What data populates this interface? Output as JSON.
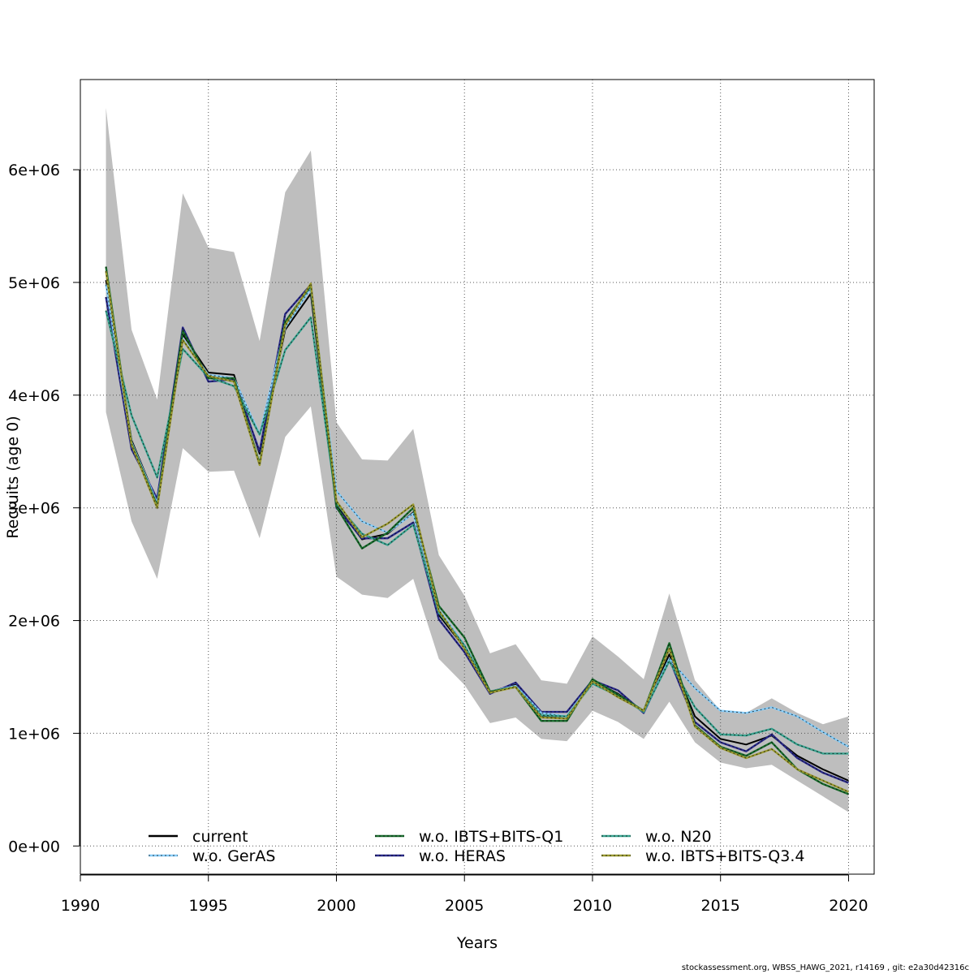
{
  "chart_data": {
    "type": "line",
    "xlabel": "Years",
    "ylabel": "Recruits (age 0)",
    "xlim": [
      1990,
      2021
    ],
    "ylim": [
      -250000,
      6800000
    ],
    "x_ticks": [
      1990,
      1995,
      2000,
      2005,
      2010,
      2015,
      2020
    ],
    "y_ticks": [
      0,
      1000000,
      2000000,
      3000000,
      4000000,
      5000000,
      6000000
    ],
    "x_tick_labels": [
      "1990",
      "1995",
      "2000",
      "2005",
      "2010",
      "2015",
      "2020"
    ],
    "y_tick_labels": [
      "0e+00",
      "1e+06",
      "2e+06",
      "3e+06",
      "4e+06",
      "5e+06",
      "6e+06"
    ],
    "grid": true,
    "legend_position": "bottom",
    "x": [
      1991,
      1992,
      1993,
      1994,
      1995,
      1996,
      1997,
      1998,
      1999,
      2000,
      2001,
      2002,
      2003,
      2004,
      2005,
      2006,
      2007,
      2008,
      2009,
      2010,
      2011,
      2012,
      2013,
      2014,
      2015,
      2016,
      2017,
      2018,
      2019,
      2020
    ],
    "band": {
      "color": "#bebebe",
      "lower": [
        3850000,
        2880000,
        2370000,
        3530000,
        3320000,
        3330000,
        2730000,
        3630000,
        3900000,
        2390000,
        2230000,
        2200000,
        2370000,
        1660000,
        1430000,
        1090000,
        1140000,
        950000,
        930000,
        1200000,
        1100000,
        950000,
        1280000,
        920000,
        740000,
        690000,
        720000,
        580000,
        440000,
        300000
      ],
      "upper": [
        6550000,
        4580000,
        3960000,
        5790000,
        5310000,
        5270000,
        4480000,
        5800000,
        6170000,
        3760000,
        3430000,
        3420000,
        3700000,
        2580000,
        2220000,
        1710000,
        1790000,
        1470000,
        1440000,
        1860000,
        1680000,
        1480000,
        2240000,
        1470000,
        1200000,
        1180000,
        1310000,
        1180000,
        1080000,
        1150000
      ]
    },
    "series": [
      {
        "name": "current",
        "color": "#000000",
        "dash": false,
        "values": [
          5020000,
          3600000,
          3050000,
          4540000,
          4200000,
          4180000,
          3480000,
          4580000,
          4900000,
          3020000,
          2720000,
          2770000,
          2960000,
          2050000,
          1760000,
          1370000,
          1430000,
          1150000,
          1130000,
          1470000,
          1350000,
          1190000,
          1700000,
          1150000,
          950000,
          900000,
          980000,
          800000,
          680000,
          580000
        ]
      },
      {
        "name": "w.o. HERAS",
        "color": "#2a2a8c",
        "dash": true,
        "values": [
          4870000,
          3520000,
          3080000,
          4600000,
          4120000,
          4140000,
          3500000,
          4720000,
          4980000,
          3000000,
          2730000,
          2730000,
          2870000,
          2010000,
          1720000,
          1350000,
          1450000,
          1190000,
          1190000,
          1470000,
          1380000,
          1180000,
          1660000,
          1100000,
          920000,
          840000,
          990000,
          780000,
          650000,
          560000
        ]
      },
      {
        "name": "w.o. GerAS",
        "color": "#87cefa",
        "dash": true,
        "values": [
          4980000,
          3580000,
          3040000,
          4500000,
          4180000,
          4150000,
          3650000,
          4600000,
          4950000,
          3150000,
          2880000,
          2780000,
          2950000,
          2100000,
          1780000,
          1370000,
          1420000,
          1180000,
          1150000,
          1460000,
          1340000,
          1190000,
          1660000,
          1400000,
          1200000,
          1180000,
          1230000,
          1150000,
          1010000,
          880000
        ]
      },
      {
        "name": "w.o. N20",
        "color": "#38a38f",
        "dash": true,
        "values": [
          4750000,
          3820000,
          3270000,
          4410000,
          4160000,
          4080000,
          3650000,
          4400000,
          4690000,
          3040000,
          2770000,
          2670000,
          2850000,
          2070000,
          1780000,
          1370000,
          1410000,
          1160000,
          1150000,
          1440000,
          1330000,
          1190000,
          1640000,
          1230000,
          990000,
          980000,
          1040000,
          900000,
          820000,
          820000
        ]
      },
      {
        "name": "w.o. IBTS+BITS-Q1",
        "color": "#1a6e2e",
        "dash": true,
        "values": [
          5140000,
          3570000,
          3020000,
          4570000,
          4150000,
          4150000,
          3390000,
          4650000,
          4970000,
          3010000,
          2640000,
          2780000,
          3000000,
          2130000,
          1850000,
          1370000,
          1410000,
          1110000,
          1110000,
          1480000,
          1340000,
          1200000,
          1800000,
          1070000,
          880000,
          800000,
          920000,
          680000,
          550000,
          460000
        ]
      },
      {
        "name": "w.o. IBTS+BITS-Q3.4",
        "color": "#9a9a30",
        "dash": true,
        "values": [
          5100000,
          3560000,
          3000000,
          4490000,
          4170000,
          4120000,
          3380000,
          4620000,
          4990000,
          3060000,
          2740000,
          2860000,
          3030000,
          2090000,
          1750000,
          1360000,
          1410000,
          1140000,
          1130000,
          1460000,
          1320000,
          1200000,
          1750000,
          1060000,
          870000,
          780000,
          860000,
          680000,
          580000,
          480000
        ]
      }
    ],
    "legend_order": [
      0,
      2,
      4,
      1,
      3,
      5
    ]
  },
  "footer_text": "stockassessment.org, WBSS_HAWG_2021, r14169 , git: e2a30d42316c"
}
